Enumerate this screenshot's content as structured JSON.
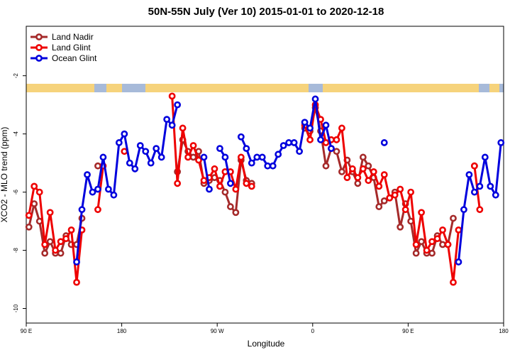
{
  "chart_data": {
    "type": "line",
    "title": "50N-55N July (Ver 10)   2015-01-01 to 2020-12-18",
    "x_label": "Longitude",
    "y_label": "XCO2 - MLO trend (ppm)",
    "legend": "top-left",
    "grid": false,
    "xlim": [
      90,
      540
    ],
    "ylim": [
      -10.5,
      -0.3
    ],
    "xticks": [
      {
        "value": 90,
        "label": "90 E"
      },
      180,
      {
        "value": 270,
        "label": "90 W"
      },
      {
        "value": 360,
        "label": "0"
      },
      {
        "value": 450,
        "label": "90 E"
      },
      {
        "value": 540,
        "label": "180"
      }
    ],
    "yticks": [
      -2,
      -4,
      -6,
      -8,
      -10
    ],
    "x": [
      92.5,
      97.5,
      102.5,
      107.5,
      112.5,
      117.5,
      122.5,
      127.5,
      132.5,
      137.5,
      142.5,
      147.5,
      152.5,
      157.5,
      162.5,
      167.5,
      172.5,
      177.5,
      182.5,
      187.5,
      192.5,
      197.5,
      202.5,
      207.5,
      212.5,
      217.5,
      222.5,
      227.5,
      232.5,
      237.5,
      242.5,
      247.5,
      252.5,
      257.5,
      262.5,
      267.5,
      272.5,
      277.5,
      282.5,
      287.5,
      292.5,
      297.5,
      302.5,
      307.5,
      312.5,
      317.5,
      322.5,
      327.5,
      332.5,
      337.5,
      342.5,
      347.5,
      352.5,
      357.5,
      362.5,
      367.5,
      372.5,
      377.5,
      382.5,
      387.5,
      392.5,
      397.5,
      402.5,
      407.5,
      412.5,
      417.5,
      422.5,
      427.5,
      432.5,
      437.5,
      442.5,
      447.5,
      452.5,
      457.5,
      462.5,
      467.5,
      472.5,
      477.5,
      482.5,
      487.5,
      492.5,
      497.5,
      502.5,
      507.5,
      512.5,
      517.5,
      522.5,
      527.5,
      532.5,
      537.5
    ],
    "series": [
      {
        "name": "Land Nadir",
        "color": "#a52a2a",
        "values": [
          -7.2,
          -6.4,
          -7.0,
          -8.1,
          -7.7,
          -8.1,
          -8.1,
          -7.5,
          -7.8,
          -7.8,
          -6.9,
          null,
          null,
          -5.1,
          null,
          null,
          null,
          null,
          null,
          null,
          null,
          null,
          null,
          null,
          null,
          null,
          null,
          null,
          -5.3,
          -4.2,
          -4.6,
          -4.8,
          -4.6,
          -5.7,
          -5.6,
          -5.5,
          -5.6,
          -6.0,
          -6.5,
          -6.7,
          -4.9,
          -5.6,
          -5.7,
          null,
          null,
          null,
          null,
          null,
          null,
          null,
          null,
          null,
          -3.8,
          -3.9,
          -3.1,
          -3.9,
          -5.1,
          -4.5,
          -4.6,
          -5.3,
          -4.9,
          -5.3,
          -5.7,
          -4.8,
          -5.1,
          -5.5,
          -6.5,
          -6.3,
          -6.2,
          -6.0,
          -7.2,
          -6.4,
          -7.0,
          -8.1,
          -7.7,
          -8.1,
          -8.1,
          -7.5,
          -7.8,
          -7.8,
          -6.9,
          null,
          null,
          null,
          -5.1,
          null,
          null,
          null,
          null,
          null
        ]
      },
      {
        "name": "Land Glint",
        "color": "#ee0000",
        "values": [
          -6.8,
          -5.8,
          -6.0,
          -7.8,
          -6.7,
          -8.0,
          -7.7,
          -7.6,
          -7.3,
          -9.1,
          -7.3,
          null,
          null,
          -6.6,
          -5.1,
          null,
          null,
          null,
          -4.6,
          null,
          null,
          null,
          null,
          null,
          null,
          null,
          null,
          -2.7,
          -5.7,
          -3.8,
          -4.8,
          -4.4,
          -4.9,
          -5.6,
          -5.5,
          -5.2,
          -5.8,
          -5.3,
          -5.3,
          -5.9,
          -4.8,
          -5.7,
          -5.8,
          null,
          null,
          null,
          null,
          null,
          null,
          null,
          null,
          null,
          -3.7,
          -4.2,
          -3.0,
          -3.5,
          -4.3,
          -4.2,
          -4.2,
          -3.8,
          -5.5,
          -5.2,
          -5.5,
          -5.2,
          -5.6,
          -5.3,
          -5.8,
          -5.4,
          -6.2,
          -6.1,
          -5.9,
          -6.6,
          -6.0,
          -7.8,
          -6.7,
          -8.0,
          -7.7,
          -7.6,
          -7.3,
          -7.8,
          -9.1,
          -7.3,
          null,
          null,
          -5.1,
          -6.6,
          null,
          null,
          null,
          null
        ]
      },
      {
        "name": "Ocean Glint",
        "color": "#0000dd",
        "values": [
          null,
          null,
          null,
          null,
          null,
          null,
          null,
          null,
          null,
          -8.4,
          -6.6,
          -5.4,
          -6.0,
          -5.9,
          -4.8,
          -5.9,
          -6.1,
          -4.3,
          -4.0,
          -5.0,
          -5.2,
          -4.4,
          -4.6,
          -5.0,
          -4.5,
          -4.8,
          -3.5,
          -3.7,
          -3.0,
          null,
          null,
          null,
          null,
          -4.8,
          -5.9,
          null,
          -4.5,
          -4.8,
          -5.7,
          null,
          -4.1,
          -4.5,
          -5.0,
          -4.8,
          -4.8,
          -5.1,
          -5.1,
          -4.7,
          -4.4,
          -4.3,
          -4.3,
          -4.6,
          -3.6,
          -3.8,
          -2.8,
          -4.2,
          -3.7,
          -4.5,
          null,
          null,
          null,
          null,
          null,
          null,
          null,
          null,
          null,
          -4.3,
          null,
          null,
          null,
          null,
          null,
          null,
          null,
          null,
          null,
          null,
          null,
          null,
          null,
          -8.4,
          -6.6,
          -5.4,
          -6.0,
          -5.8,
          -4.8,
          -5.8,
          -6.1,
          -4.3
        ]
      }
    ]
  }
}
